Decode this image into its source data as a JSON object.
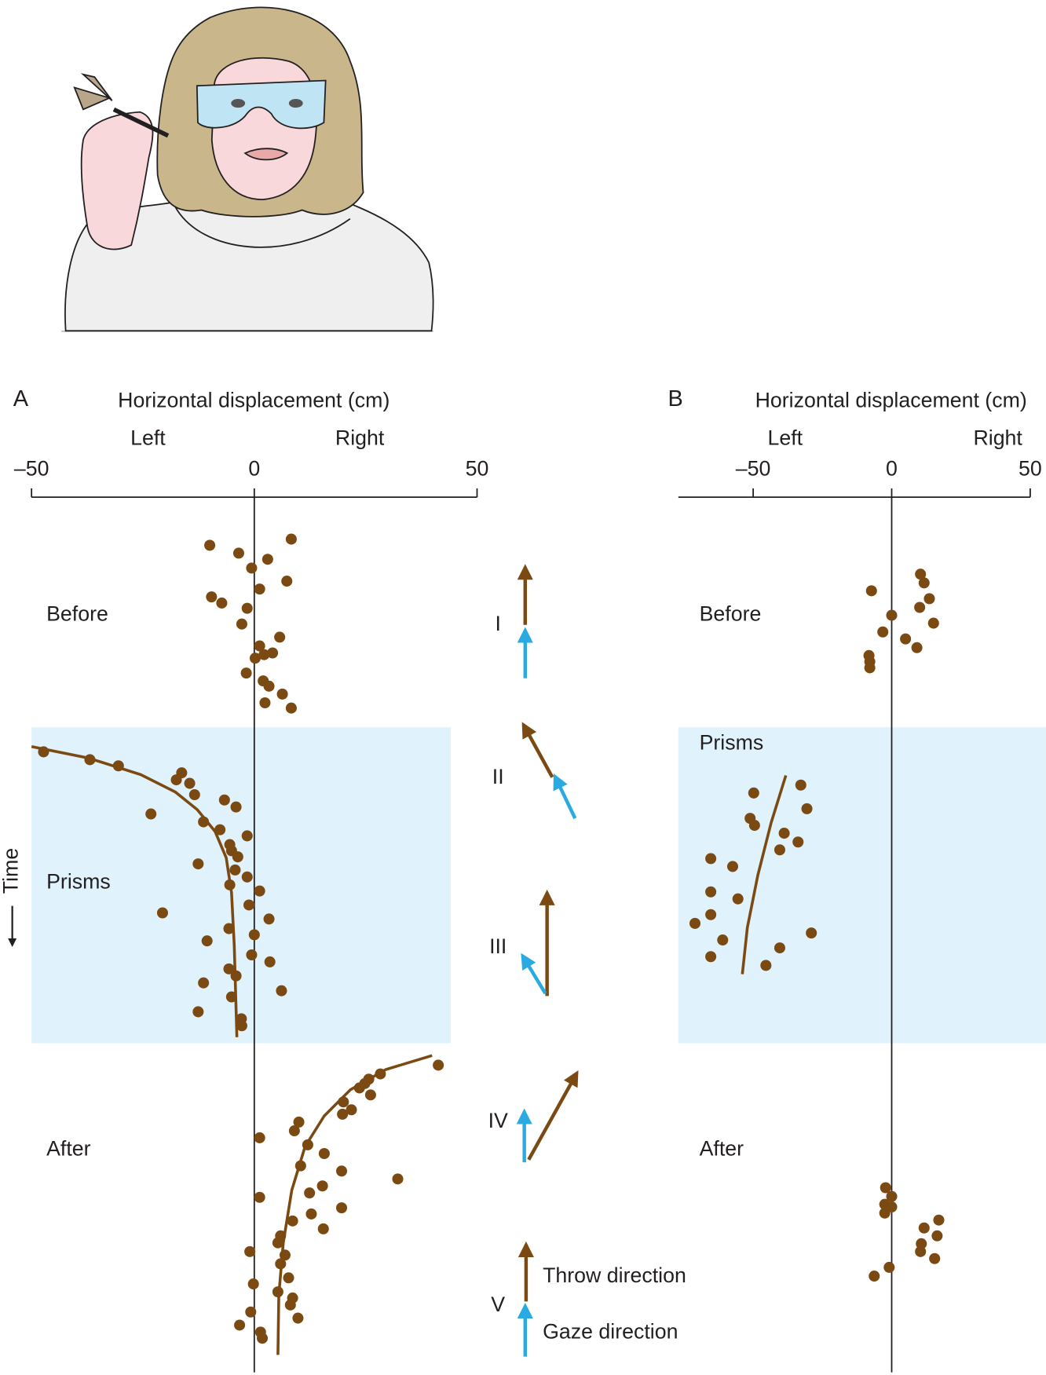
{
  "chart_data": [
    {
      "type": "scatter",
      "panel": "A",
      "title": "Horizontal displacement (cm)",
      "direction_labels": [
        "Left",
        "Right"
      ],
      "ylabel": "Time",
      "phase_labels": [
        "Before",
        "Prisms",
        "After"
      ],
      "xlim": [
        -50,
        50
      ],
      "xticks": [
        {
          "value": -50,
          "label": "–50"
        },
        0,
        50
      ],
      "ylim": [
        0,
        99
      ],
      "zero_line": true,
      "series": [
        {
          "color": "#7b4a12",
          "x": [
            -10,
            -3.5,
            3,
            8.3,
            -0.6,
            7.3,
            -9.6,
            -7.3,
            1.2,
            -1.6,
            -2.8,
            5.7,
            1.2,
            4.1,
            2.2,
            0.2,
            -1.8,
            2,
            3.3,
            6.3,
            2.4,
            8.3
          ],
          "y": [
            4.3,
            5.2,
            5.9,
            3.6,
            6.9,
            8.4,
            10.2,
            10.9,
            9.3,
            11.5,
            13.3,
            14.8,
            15.8,
            16.6,
            16.8,
            17.2,
            18.9,
            19.8,
            20.4,
            21.3,
            22.3,
            22.9
          ]
        },
        {
          "color": "#7b4a12",
          "x": [
            -47.3,
            -36.9,
            -30.5,
            -16.3,
            -17.5,
            -14.5,
            -13.4,
            -6.7,
            -4.1,
            -23.2,
            -11.4,
            -7.7,
            -1.6,
            -5.5,
            -5.1,
            -3.7,
            -12.6,
            -4.3,
            -1.6,
            -5.5,
            1.2,
            -1.2,
            -20.6,
            3.3,
            -5.7,
            0,
            -10.6,
            -0.6,
            3.5,
            -5.7,
            -4.1,
            -11.4,
            6.1,
            -5.1,
            -12.6,
            -2.9,
            -2.8
          ],
          "y": [
            27.9,
            28.8,
            29.5,
            30.3,
            31.1,
            31.5,
            32.8,
            33.4,
            34.2,
            35,
            35.9,
            36.8,
            37.5,
            38.5,
            39.2,
            39.9,
            40.7,
            41.4,
            42.2,
            43.1,
            43.8,
            45.4,
            46.3,
            47,
            48.1,
            48.8,
            49.5,
            51.1,
            51.9,
            52.7,
            53.5,
            54.3,
            55.2,
            55.9,
            57.6,
            58.4,
            59.2
          ]
        },
        {
          "color": "#7b4a12",
          "x": [
            41.3,
            28.3,
            25.7,
            24.8,
            23.6,
            26.1,
            20,
            21.8,
            19.8,
            10,
            9,
            1.2,
            12,
            15.7,
            10.4,
            19.6,
            32.2,
            15.3,
            12.4,
            1.2,
            19.6,
            12.8,
            8.6,
            15.5,
            5.9,
            5.3,
            -1,
            6.9,
            5.9,
            7.7,
            -0.2,
            5.3,
            8.6,
            8.1,
            -0.8,
            9.8,
            -3.3,
            1.4,
            1.8
          ],
          "y": [
            63.7,
            64.7,
            65.3,
            65.8,
            66.3,
            67.1,
            67.9,
            68.8,
            69.3,
            70.2,
            71.2,
            72,
            72.8,
            73.8,
            75.2,
            75.8,
            76.7,
            77.5,
            78.3,
            78.8,
            80,
            80.7,
            81.5,
            82.4,
            83.2,
            84,
            85,
            85.4,
            86.4,
            88,
            88.7,
            89.6,
            90.3,
            91.1,
            91.9,
            92.6,
            93.4,
            94.2,
            94.9
          ]
        }
      ],
      "fits": [
        {
          "color": "#7b4a12",
          "x": [
            -50,
            -37.3,
            -25.5,
            -17.7,
            -12.8,
            -8.8,
            -6.3,
            -5.1,
            -4.5,
            -3.9
          ],
          "y": [
            27.3,
            28.6,
            30.5,
            32.5,
            34.5,
            37,
            40,
            44,
            50,
            60.5
          ]
        },
        {
          "color": "#7b4a12",
          "x": [
            39.9,
            29.5,
            21.6,
            15.7,
            11.4,
            8.4,
            6.5,
            5.5,
            5.3
          ],
          "y": [
            62.6,
            64.2,
            66.5,
            69.5,
            73,
            78,
            84,
            90,
            96.8
          ]
        }
      ]
    },
    {
      "type": "scatter",
      "panel": "B",
      "title": "Horizontal displacement (cm)",
      "direction_labels": [
        "Left",
        "Right"
      ],
      "phase_labels": [
        "Before",
        "Prisms",
        "After"
      ],
      "xlim": [
        -77,
        50
      ],
      "xticks": [
        {
          "value": -50,
          "label": "–50"
        },
        0,
        50
      ],
      "ylim": [
        0,
        99
      ],
      "zero_line": true,
      "series": [
        {
          "color": "#7b4a12",
          "x": [
            10.4,
            11.7,
            -7.3,
            13.6,
            10.1,
            0,
            15.1,
            -3.2,
            5,
            9.1,
            -8.2,
            -7.9,
            -7.9
          ],
          "y": [
            7.6,
            8.6,
            9.5,
            10.4,
            11.4,
            12.3,
            13.2,
            14.2,
            15,
            16,
            16.9,
            17.6,
            18.3
          ]
        },
        {
          "color": "#7b4a12",
          "x": [
            -32.8,
            -49.8,
            -30.6,
            -51.1,
            -49.5,
            -38.8,
            -33.8,
            -40.4,
            -65.3,
            -57.4,
            -65.3,
            -55.5,
            -65.3,
            -71,
            -29,
            -61,
            -40.4,
            -65.3,
            -45.4
          ],
          "y": [
            31.7,
            32.6,
            34.4,
            35.5,
            36.3,
            37.2,
            38.2,
            39.1,
            40.1,
            41,
            43.9,
            44.7,
            46.5,
            47.5,
            48.6,
            49.4,
            50.3,
            51.3,
            52.3
          ]
        },
        {
          "color": "#7b4a12",
          "x": [
            -2.2,
            0,
            -2.5,
            0,
            -2.5,
            17,
            11.7,
            16.4,
            10.7,
            10.4,
            15.5,
            -0.9,
            -6.3
          ],
          "y": [
            77.7,
            78.7,
            79.6,
            79.9,
            80.6,
            81.4,
            82.3,
            83.2,
            84.1,
            85,
            85.8,
            86.8,
            87.8
          ]
        }
      ],
      "fits": [
        {
          "color": "#7b4a12",
          "x": [
            -38.2,
            -43.5,
            -48.3,
            -52.1,
            -53.9
          ],
          "y": [
            30.6,
            36,
            42,
            48,
            53.3
          ]
        }
      ]
    }
  ],
  "arrow_diagram": {
    "stages": [
      "I",
      "II",
      "III",
      "IV",
      "V"
    ],
    "legend": [
      "Throw direction",
      "Gaze direction"
    ]
  }
}
